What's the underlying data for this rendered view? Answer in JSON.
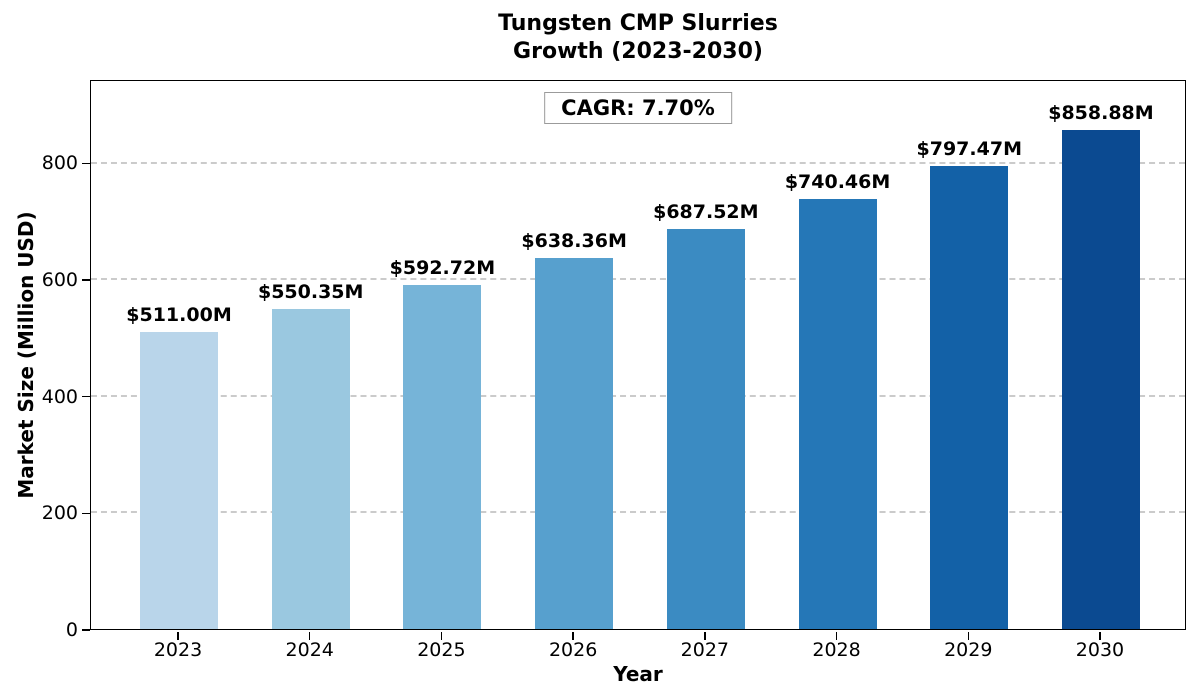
{
  "title": {
    "line1": "Tungsten CMP Slurries",
    "line2": "Growth (2023-2030)"
  },
  "annotation": {
    "cagr_label": "CAGR: 7.70%"
  },
  "axes": {
    "x_label": "Year",
    "y_label": "Market Size (Million USD)",
    "y_ticks": [
      0,
      200,
      400,
      600,
      800
    ]
  },
  "chart_data": {
    "type": "bar",
    "title": "Tungsten CMP Slurries Growth (2023-2030)",
    "xlabel": "Year",
    "ylabel": "Market Size (Million USD)",
    "categories": [
      "2023",
      "2024",
      "2025",
      "2026",
      "2027",
      "2028",
      "2029",
      "2030"
    ],
    "values": [
      511.0,
      550.35,
      592.72,
      638.36,
      687.52,
      740.46,
      797.47,
      858.88
    ],
    "bar_labels": [
      "$511.00M",
      "$550.35M",
      "$592.72M",
      "$638.36M",
      "$687.52M",
      "$740.46M",
      "$797.47M",
      "$858.88M"
    ],
    "bar_colors": [
      "#b9d5ea",
      "#9ac8e0",
      "#76b4d8",
      "#57a0ce",
      "#3b8bc2",
      "#2577b7",
      "#1361a7",
      "#0b4a91"
    ],
    "annotation": "CAGR: 7.70%",
    "ylim": [
      0,
      943
    ],
    "y_ticks": [
      0,
      200,
      400,
      600,
      800
    ],
    "grid": "horizontal-dashed",
    "gridline_color": "#cbcbcb",
    "legend": "none"
  }
}
